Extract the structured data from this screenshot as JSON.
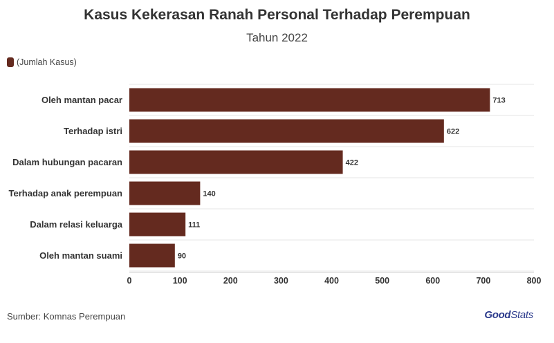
{
  "title": "Kasus Kekerasan Ranah Personal Terhadap Perempuan",
  "subtitle": "Tahun 2022",
  "legend_label": "(Jumlah Kasus)",
  "source": "Sumber: Komnas Perempuan",
  "logo": {
    "bold": "Good",
    "light": "Stats"
  },
  "colors": {
    "bar": "#642a1f",
    "grid": "#e6e6e6",
    "axis": "#333333"
  },
  "chart_data": {
    "type": "bar",
    "orientation": "horizontal",
    "title": "Kasus Kekerasan Ranah Personal Terhadap Perempuan",
    "subtitle": "Tahun 2022",
    "categories": [
      "Oleh mantan pacar",
      "Terhadap istri",
      "Dalam hubungan pacaran",
      "Terhadap anak perempuan",
      "Dalam relasi keluarga",
      "Oleh mantan suami"
    ],
    "series": [
      {
        "name": "(Jumlah Kasus)",
        "values": [
          713,
          622,
          422,
          140,
          111,
          90
        ]
      }
    ],
    "xlim": [
      0,
      800
    ],
    "xticks": [
      0,
      100,
      200,
      300,
      400,
      500,
      600,
      700,
      800
    ],
    "grid": true,
    "legend": "top-left"
  }
}
